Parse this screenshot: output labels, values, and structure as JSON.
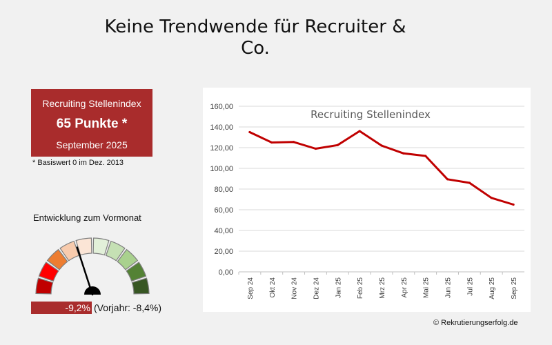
{
  "page": {
    "title": "Keine Trendwende für Recruiter & Co.",
    "copyright": "© Rekrutierungserfolg.de"
  },
  "index_box": {
    "label": "Recruiting Stellenindex",
    "value": "65 Punkte *",
    "date": "September 2025",
    "footnote": "* Basiswert 0 im Dez. 2013",
    "color": "#a92c2c"
  },
  "gauge": {
    "title": "Entwicklung zum Vormonat",
    "change": "-9,2%",
    "previous_year": "(Vorjahr: -8,4%)",
    "segment_colors": [
      "#c00000",
      "#ff0000",
      "#ed7d31",
      "#f8cbad",
      "#fbe5d6",
      "#e2f0d9",
      "#c5e0b4",
      "#a9d18e",
      "#548235",
      "#375623"
    ],
    "needle_level": 0.4
  },
  "chart_data": {
    "type": "line",
    "title": "Recruiting Stellenindex",
    "categories": [
      "Sep 24",
      "Okt 24",
      "Nov 24",
      "Dez 24",
      "Jan 25",
      "Feb 25",
      "Mrz 25",
      "Apr 25",
      "Mai 25",
      "Jun 25",
      "Jul 25",
      "Aug 25",
      "Sep 25"
    ],
    "series": [
      {
        "values": [
          135,
          125,
          125.5,
          119,
          122.5,
          136,
          122,
          114.5,
          112,
          89.5,
          86,
          71.5,
          65
        ],
        "color": "#c00000"
      }
    ],
    "ylim": [
      0,
      160
    ],
    "yticks": [
      "0,00",
      "20,00",
      "40,00",
      "60,00",
      "80,00",
      "100,00",
      "120,00",
      "140,00",
      "160,00"
    ],
    "grid": true,
    "legend": "none"
  }
}
